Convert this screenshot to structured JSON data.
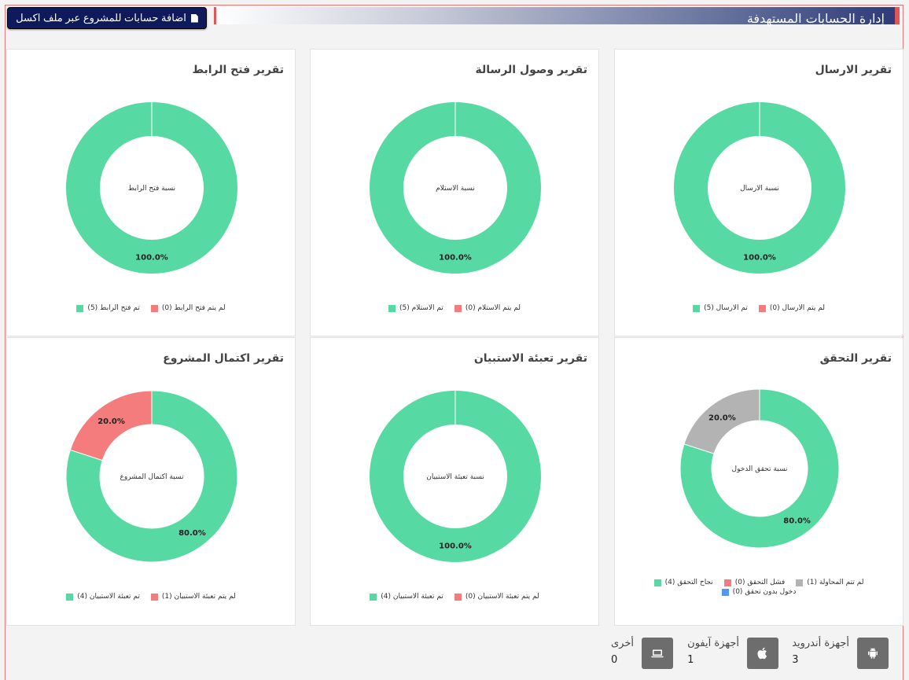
{
  "header": {
    "title": "إدارة الحسابات المستهدفة",
    "excel_button_label": "اضافة حسابات للمشروع عبر ملف اكسل",
    "excel_button_icon": "file-icon"
  },
  "colors": {
    "green": "#57d9a3",
    "red": "#f47c7c",
    "gray": "#b3b3b3",
    "blue": "#4e9af1"
  },
  "cards": [
    {
      "title": "تقرير الارسال",
      "center_text": "نسبة الارسال",
      "legend": [
        {
          "label": "لم يتم الارسال (0)",
          "color": "#f47c7c"
        },
        {
          "label": "تم الارسال (5)",
          "color": "#57d9a3"
        }
      ],
      "chart_data": {
        "type": "pie",
        "slices": [
          {
            "label": "تم الارسال",
            "value": 100.0,
            "color": "#57d9a3",
            "pct_label": "100.0%"
          }
        ]
      }
    },
    {
      "title": "تقرير وصول الرسالة",
      "center_text": "نسبة الاستلام",
      "legend": [
        {
          "label": "لم يتم الاستلام (0)",
          "color": "#f47c7c"
        },
        {
          "label": "تم الاستلام (5)",
          "color": "#57d9a3"
        }
      ],
      "chart_data": {
        "type": "pie",
        "slices": [
          {
            "label": "تم الاستلام",
            "value": 100.0,
            "color": "#57d9a3",
            "pct_label": "100.0%"
          }
        ]
      }
    },
    {
      "title": "تقرير فتح الرابط",
      "center_text": "نسبة فتح الرابط",
      "legend": [
        {
          "label": "لم يتم فتح الرابط (0)",
          "color": "#f47c7c"
        },
        {
          "label": "تم فتح الرابط (5)",
          "color": "#57d9a3"
        }
      ],
      "chart_data": {
        "type": "pie",
        "slices": [
          {
            "label": "تم فتح الرابط",
            "value": 100.0,
            "color": "#57d9a3",
            "pct_label": "100.0%"
          }
        ]
      }
    },
    {
      "title": "تقرير التحقق",
      "center_text": "نسبة تحقق الدخول",
      "legend": [
        {
          "label": "لم تتم المحاولة (1)",
          "color": "#b3b3b3"
        },
        {
          "label": "فشل التحقق (0)",
          "color": "#f47c7c"
        },
        {
          "label": "نجاح التحقق (4)",
          "color": "#57d9a3"
        },
        {
          "label": "دخول بدون تحقق (0)",
          "color": "#4e9af1"
        }
      ],
      "chart_data": {
        "type": "pie",
        "slices": [
          {
            "label": "نجاح التحقق",
            "value": 80.0,
            "color": "#57d9a3",
            "pct_label": "80.0%"
          },
          {
            "label": "لم تتم المحاولة",
            "value": 20.0,
            "color": "#b3b3b3",
            "pct_label": "20.0%"
          }
        ]
      }
    },
    {
      "title": "تقرير تعبئة الاستبيان",
      "center_text": "نسبة تعبئة الاستبيان",
      "legend": [
        {
          "label": "لم يتم تعبئة الاستبيان (0)",
          "color": "#f47c7c"
        },
        {
          "label": "تم تعبئة الاستبيان (4)",
          "color": "#57d9a3"
        }
      ],
      "chart_data": {
        "type": "pie",
        "slices": [
          {
            "label": "تم تعبئة الاستبيان",
            "value": 100.0,
            "color": "#57d9a3",
            "pct_label": "100.0%"
          }
        ]
      }
    },
    {
      "title": "تقرير اكتمال المشروع",
      "center_text": "نسبة اكتمال المشروع",
      "legend": [
        {
          "label": "لم يتم تعبئة الاستبيان (1)",
          "color": "#f47c7c"
        },
        {
          "label": "تم تعبئة الاستبيان (4)",
          "color": "#57d9a3"
        }
      ],
      "chart_data": {
        "type": "pie",
        "slices": [
          {
            "label": "تم تعبئة الاستبيان",
            "value": 80.0,
            "color": "#57d9a3",
            "pct_label": "80.0%"
          },
          {
            "label": "لم يتم تعبئة الاستبيان",
            "value": 20.0,
            "color": "#f47c7c",
            "pct_label": "20.0%"
          }
        ]
      }
    }
  ],
  "devices": [
    {
      "label": "أجهزة أندرويد",
      "count": "3",
      "icon": "android-icon"
    },
    {
      "label": "أجهزة آيفون",
      "count": "1",
      "icon": "apple-icon"
    },
    {
      "label": "أخرى",
      "count": "0",
      "icon": "laptop-icon"
    }
  ]
}
